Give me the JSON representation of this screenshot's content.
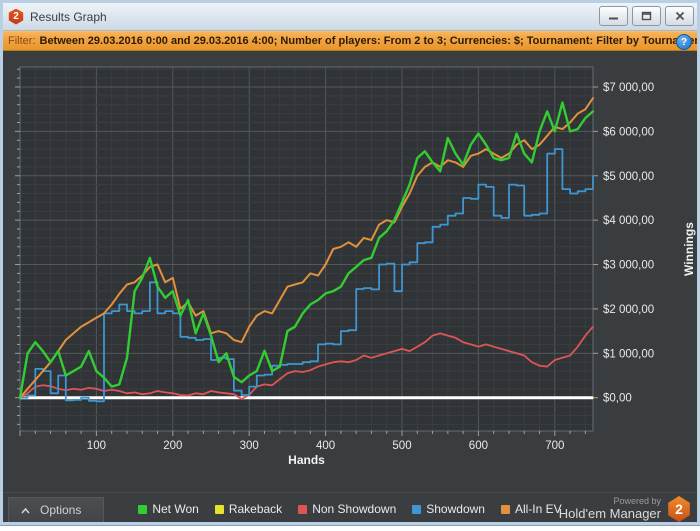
{
  "window": {
    "title": "Results Graph"
  },
  "window_buttons": {
    "minimize": "minimize",
    "restore": "restore",
    "close": "close"
  },
  "filter_bar": {
    "label": "Filter:",
    "text": "Between 29.03.2016 0:00 and 29.03.2016 4:00; Number of players: From 2 to 3; Currencies: $; Tournament: Filter by Tournament Tags",
    "help": "?"
  },
  "footer": {
    "options_label": "Options",
    "powered_by": "Powered by",
    "brand": "Hold'em Manager",
    "brand_badge": "2"
  },
  "colors": {
    "filter_bar_bg": "#f2a444",
    "filter_label": "#8a4a10",
    "brand_orange": "#e2691e",
    "zero_line": "#ffffff",
    "plot_bg": "#303437",
    "grid_minor": "#3a3e43",
    "grid_major": "#54585c",
    "plot_border": "#666b70",
    "tick_text": "#e9e9e9"
  },
  "chart_data": {
    "type": "line",
    "title": "",
    "xlabel": "Hands",
    "ylabel": "Winnings",
    "xlim": [
      0,
      750
    ],
    "ylim": [
      -750,
      7450
    ],
    "grid": {
      "x_minor": 20,
      "x_major": 100,
      "y_minor": 200,
      "y_major": 1000,
      "visible": true
    },
    "x_ticks": [
      100,
      200,
      300,
      400,
      500,
      600,
      700
    ],
    "y_ticks": [
      {
        "v": 0,
        "label": "$0,00"
      },
      {
        "v": 1000,
        "label": "$1 000,00"
      },
      {
        "v": 2000,
        "label": "$2 000,00"
      },
      {
        "v": 3000,
        "label": "$3 000,00"
      },
      {
        "v": 4000,
        "label": "$4 000,00"
      },
      {
        "v": 5000,
        "label": "$5 000,00"
      },
      {
        "v": 6000,
        "label": "$6 000,00"
      },
      {
        "v": 7000,
        "label": "$7 000,00"
      }
    ],
    "zero_line": {
      "value": 0,
      "color": "#ffffff",
      "width": 3
    },
    "x_start": 0,
    "x_step": 10,
    "legend_position": "bottom",
    "series": [
      {
        "name": "Net Won",
        "color": "#33cc33",
        "values": [
          0,
          1000,
          1250,
          1050,
          800,
          1050,
          500,
          600,
          700,
          1050,
          600,
          450,
          250,
          300,
          900,
          2400,
          2700,
          3150,
          2500,
          2250,
          2400,
          1850,
          2200,
          1450,
          1900,
          1400,
          800,
          1000,
          470,
          350,
          500,
          600,
          1060,
          600,
          700,
          1500,
          1600,
          1900,
          2100,
          2200,
          2350,
          2400,
          2500,
          2800,
          2950,
          3100,
          3150,
          3600,
          3750,
          4000,
          4400,
          4800,
          5400,
          5550,
          5300,
          5100,
          5850,
          5500,
          5250,
          5700,
          5950,
          5700,
          5400,
          5350,
          5400,
          5950,
          5500,
          5300,
          6000,
          6450,
          6000,
          6650,
          6000,
          6050,
          6300,
          6450
        ]
      },
      {
        "name": "Rakeback",
        "color": "#e3e32e",
        "constant": 0
      },
      {
        "name": "Non Showdown",
        "color": "#dd5555",
        "values": [
          0,
          100,
          250,
          280,
          260,
          200,
          170,
          200,
          180,
          220,
          200,
          150,
          180,
          150,
          100,
          120,
          80,
          100,
          150,
          120,
          100,
          60,
          50,
          100,
          80,
          150,
          120,
          100,
          80,
          -30,
          60,
          250,
          300,
          280,
          420,
          550,
          600,
          580,
          620,
          700,
          750,
          800,
          820,
          800,
          850,
          950,
          900,
          950,
          1000,
          1050,
          1100,
          1050,
          1150,
          1250,
          1400,
          1450,
          1400,
          1350,
          1250,
          1200,
          1150,
          1200,
          1150,
          1100,
          1050,
          1000,
          950,
          800,
          720,
          700,
          850,
          900,
          950,
          1150,
          1400,
          1600
        ]
      },
      {
        "name": "Showdown",
        "color": "#3e96d2",
        "step": true,
        "values": [
          0,
          50,
          650,
          600,
          100,
          500,
          -60,
          -50,
          0,
          -70,
          -80,
          1900,
          1950,
          2100,
          1950,
          1900,
          1950,
          2600,
          1900,
          1950,
          1900,
          1370,
          1350,
          1300,
          1320,
          850,
          900,
          870,
          160,
          60,
          250,
          500,
          520,
          720,
          740,
          760,
          760,
          800,
          820,
          1200,
          1220,
          1200,
          1500,
          1520,
          2450,
          2470,
          2440,
          3000,
          3020,
          2400,
          3000,
          3050,
          3480,
          3500,
          3850,
          3900,
          4100,
          4150,
          4500,
          4480,
          4800,
          4750,
          4100,
          4050,
          4800,
          4780,
          4100,
          4120,
          4150,
          5500,
          5600,
          4700,
          4600,
          4650,
          4700,
          5000
        ]
      },
      {
        "name": "All-In EV",
        "color": "#e2913c",
        "values": [
          0,
          200,
          400,
          600,
          800,
          1050,
          1300,
          1450,
          1600,
          1700,
          1800,
          1900,
          2100,
          2340,
          2550,
          2600,
          2750,
          2950,
          3000,
          2600,
          2700,
          2000,
          2150,
          1850,
          1950,
          1450,
          1500,
          1450,
          1300,
          1250,
          1600,
          1850,
          1950,
          1900,
          2200,
          2500,
          2550,
          2600,
          2800,
          2750,
          3000,
          3350,
          3400,
          3500,
          3400,
          3600,
          3550,
          3900,
          4000,
          3950,
          4300,
          4600,
          5000,
          5200,
          5300,
          5200,
          5350,
          5300,
          5200,
          5450,
          5500,
          5600,
          5500,
          5400,
          5500,
          5700,
          5800,
          5600,
          5700,
          5900,
          6100,
          6050,
          6200,
          6400,
          6500,
          6750
        ]
      }
    ]
  }
}
